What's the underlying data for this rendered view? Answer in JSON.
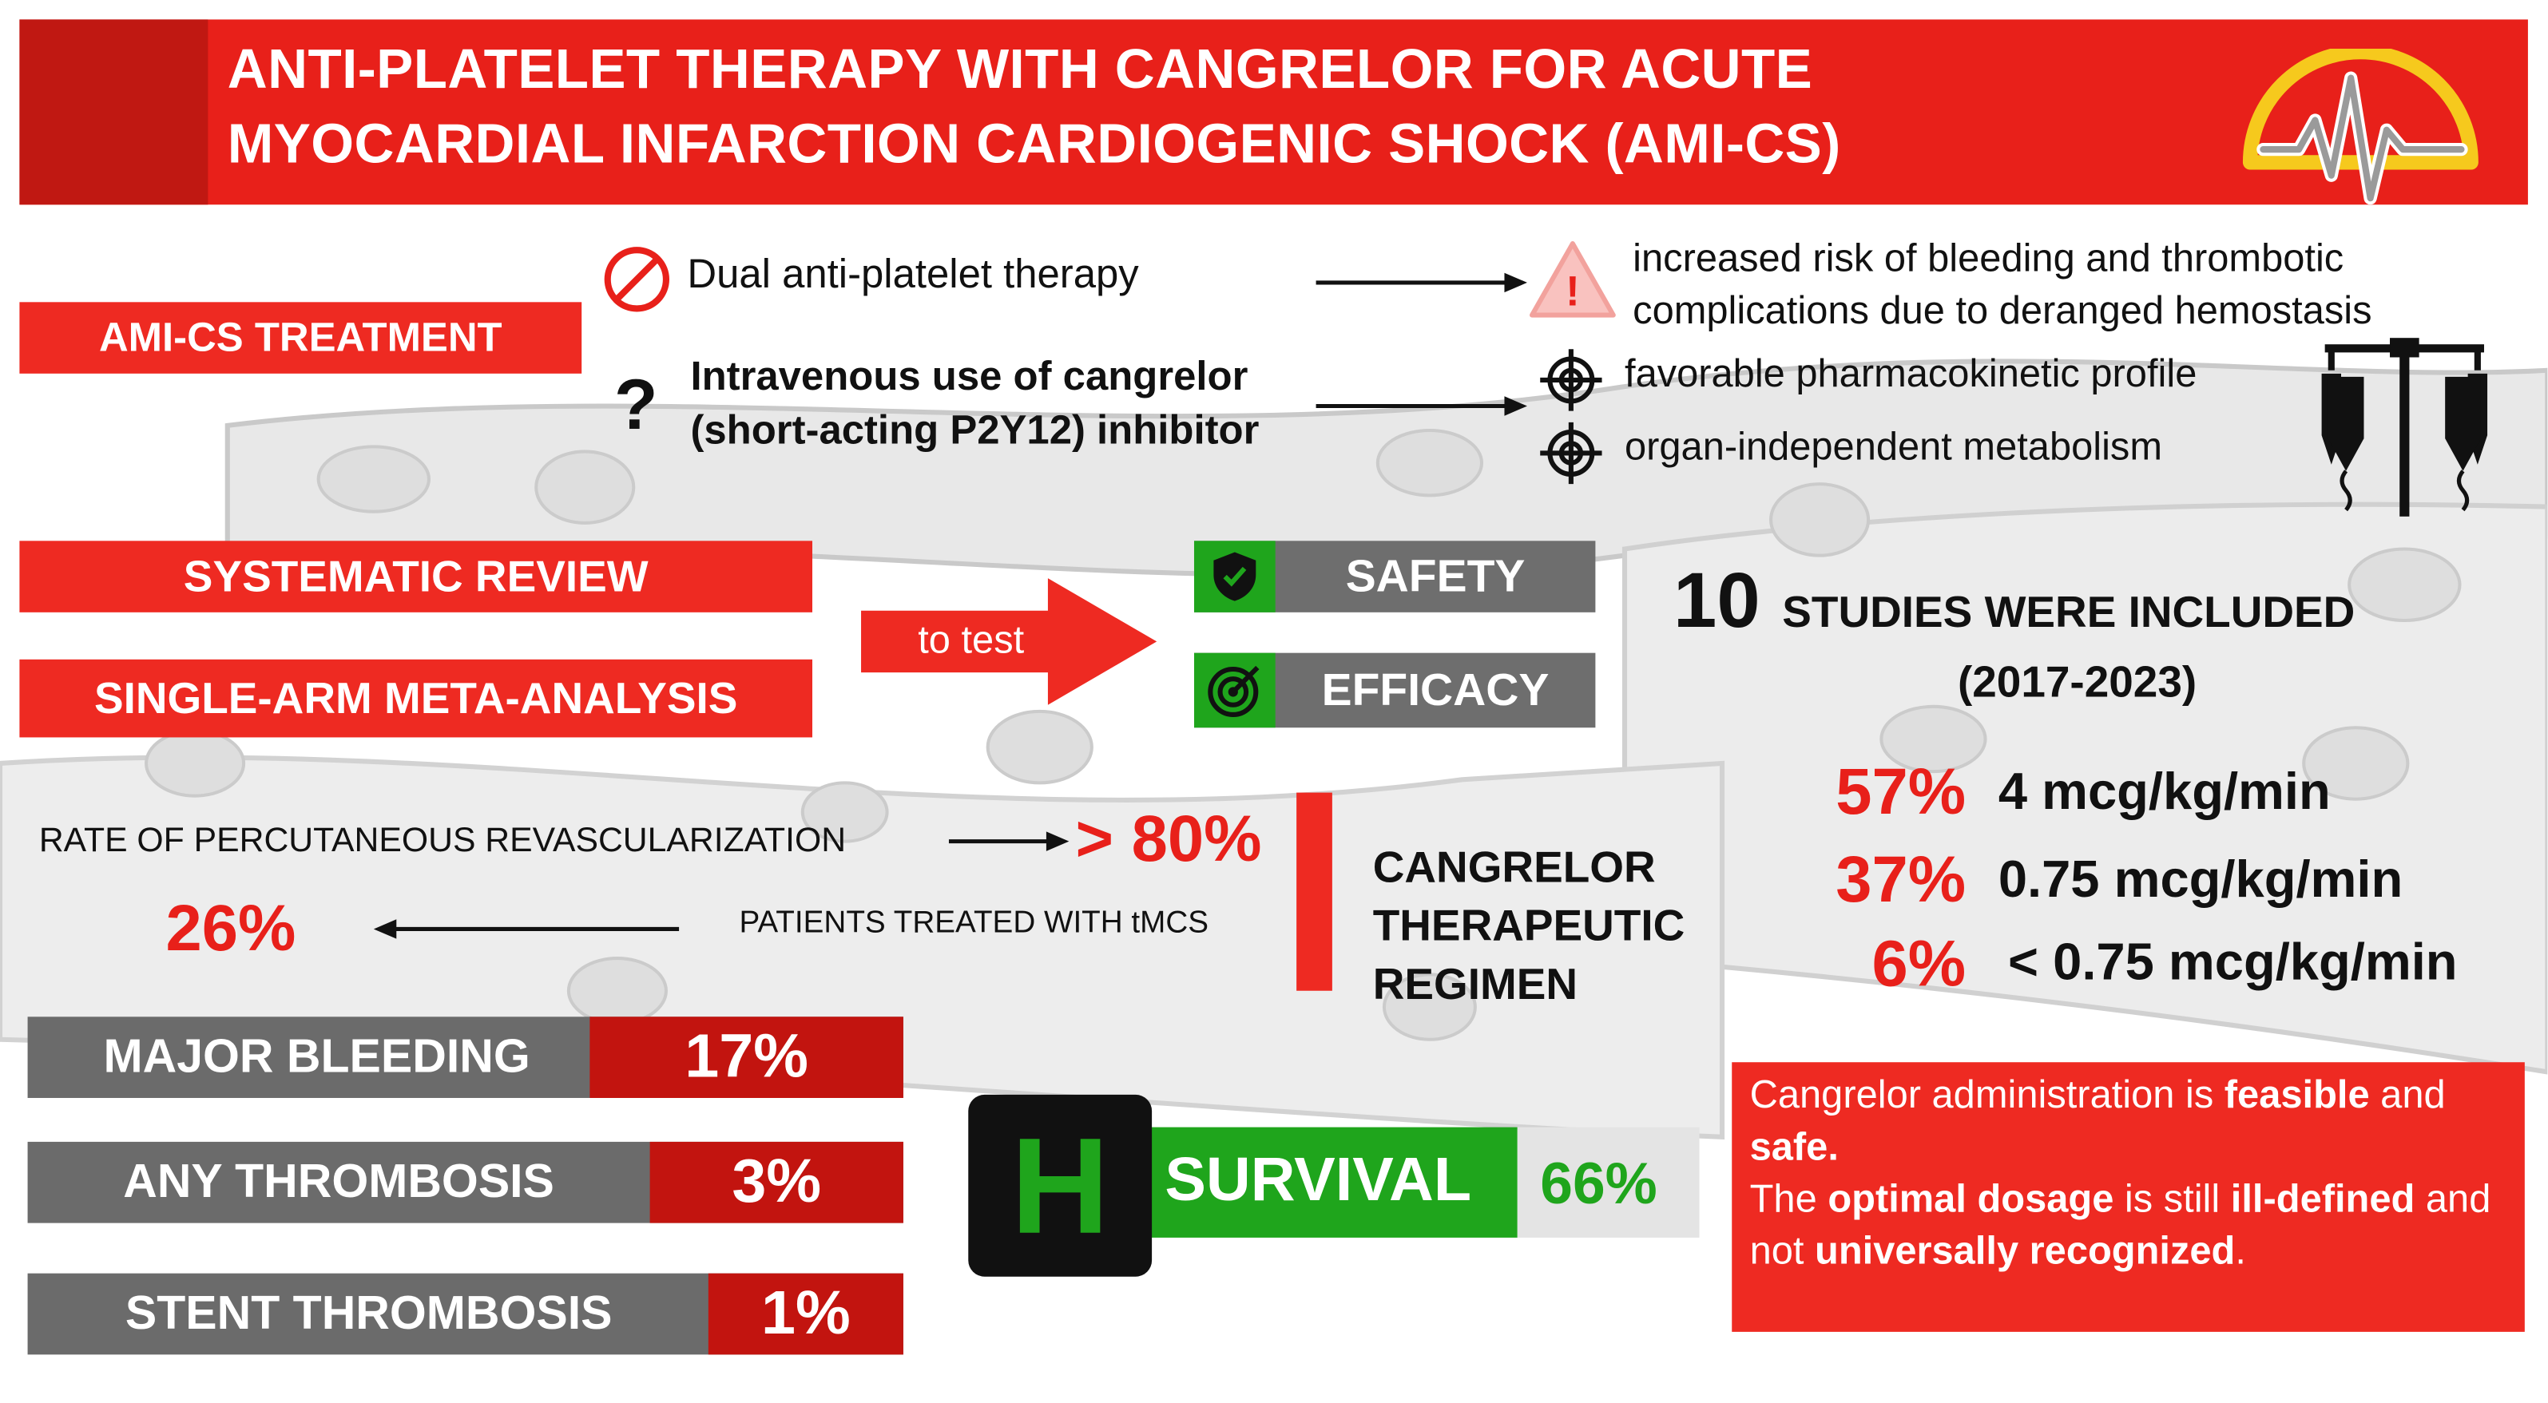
{
  "title": {
    "line1": "ANTI-PLATELET THERAPY WITH CANGRELOR FOR ACUTE",
    "line2": "MYOCARDIAL INFARCTION CARDIOGENIC SHOCK (AMI-CS)"
  },
  "treatment": {
    "label": "AMI-CS TREATMENT",
    "dapt": "Dual anti-platelet therapy",
    "dapt_risk_line1": "increased risk of bleeding and thrombotic",
    "dapt_risk_line2": "complications due to deranged hemostasis",
    "question_mark": "?",
    "iv_line1": "Intravenous use of cangrelor",
    "iv_line2": "(short-acting P2Y12) inhibitor",
    "benefit1": "favorable pharmacokinetic profile",
    "benefit2": "organ-independent metabolism"
  },
  "methods": {
    "review": "SYSTEMATIC REVIEW",
    "meta": "SINGLE-ARM META-ANALYSIS",
    "to_test": "to test",
    "safety": "SAFETY",
    "efficacy": "EFFICACY"
  },
  "studies": {
    "count": "10",
    "text": "STUDIES WERE INCLUDED",
    "years": "(2017-2023)"
  },
  "revasc": {
    "label": "RATE OF PERCUTANEOUS REVASCULARIZATION",
    "value": "> 80%",
    "tmcs_label": "PATIENTS TREATED WITH tMCS",
    "tmcs_value": "26%"
  },
  "regimen": {
    "line1": "CANGRELOR",
    "line2": "THERAPEUTIC",
    "line3": "REGIMEN",
    "doses": [
      {
        "pct": "57%",
        "dose": "4 mcg/kg/min"
      },
      {
        "pct": "37%",
        "dose": "0.75 mcg/kg/min"
      },
      {
        "pct": "6%",
        "dose": "< 0.75 mcg/kg/min"
      }
    ]
  },
  "outcomes": [
    {
      "label": "MAJOR BLEEDING",
      "value": "17%"
    },
    {
      "label": "ANY THROMBOSIS",
      "value": "3%"
    },
    {
      "label": "STENT THROMBOSIS",
      "value": "1%"
    }
  ],
  "survival": {
    "h": "H",
    "label": "SURVIVAL",
    "value": "66%"
  },
  "conclusion": {
    "p1a": "Cangrelor administration is ",
    "p1b": "feasible",
    "p1c": " and ",
    "p1d": "safe.",
    "p2a": "The ",
    "p2b": "optimal dosage",
    "p2c": " is still ",
    "p2d": "ill-defined",
    "p2e": " and not ",
    "p2f": "universally recognized",
    "p2g": "."
  },
  "colors": {
    "red": "#e8201a",
    "dark_red": "#c2140f",
    "gray": "#6e6e6e",
    "green": "#1fa51c"
  }
}
